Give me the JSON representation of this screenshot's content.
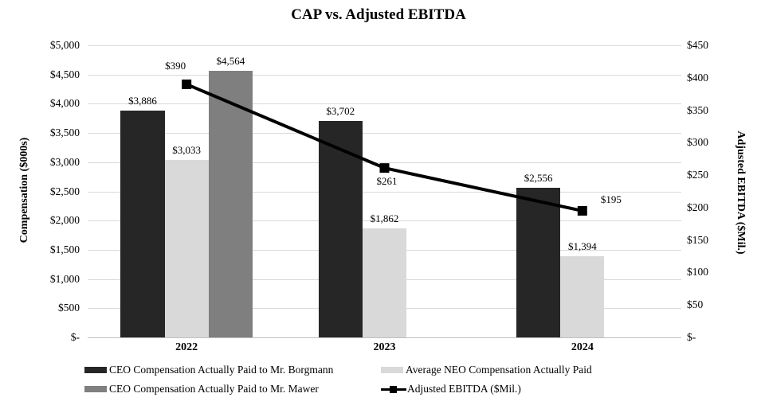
{
  "chart_data": {
    "type": "combo-bar-line",
    "title": "CAP vs. Adjusted EBITDA",
    "categories": [
      "2022",
      "2023",
      "2024"
    ],
    "series": [
      {
        "name": "CEO Compensation Actually Paid to Mr. Borgmann",
        "type": "bar",
        "axis": "left",
        "color": "#262626",
        "values": [
          3886,
          3702,
          2556
        ],
        "data_labels": [
          "$3,886",
          "$3,702",
          "$2,556"
        ]
      },
      {
        "name": "Average NEO Compensation Actually Paid",
        "type": "bar",
        "axis": "left",
        "color": "#d9d9d9",
        "values": [
          3033,
          1862,
          1394
        ],
        "data_labels": [
          "$3,033",
          "$1,862",
          "$1,394"
        ]
      },
      {
        "name": "CEO Compensation Actually Paid to Mr. Mawer",
        "type": "bar",
        "axis": "left",
        "color": "#7f7f7f",
        "values": [
          4564,
          null,
          null
        ],
        "data_labels": [
          "$4,564",
          null,
          null
        ]
      },
      {
        "name": "Adjusted EBITDA ($Mil.)",
        "type": "line",
        "axis": "right",
        "color": "#000000",
        "marker": "square",
        "values": [
          390,
          261,
          195
        ],
        "data_labels": [
          "$390",
          "$261",
          "$195"
        ]
      }
    ],
    "left_axis": {
      "title": "Compensation ($000s)",
      "min": 0,
      "max": 5000,
      "step": 500,
      "tick_labels": [
        "$5,000",
        "$4,500",
        "$4,000",
        "$3,500",
        "$3,000",
        "$2,500",
        "$2,000",
        "$1,500",
        "$1,000",
        "$500",
        "$-"
      ]
    },
    "right_axis": {
      "title": "Adjusted EBITDA ($Mil.)",
      "min": 0,
      "max": 450,
      "step": 50,
      "tick_labels": [
        "$450",
        "$400",
        "$350",
        "$300",
        "$250",
        "$200",
        "$150",
        "$100",
        "$50",
        "$-"
      ]
    },
    "grid": true,
    "legend_position": "bottom"
  }
}
